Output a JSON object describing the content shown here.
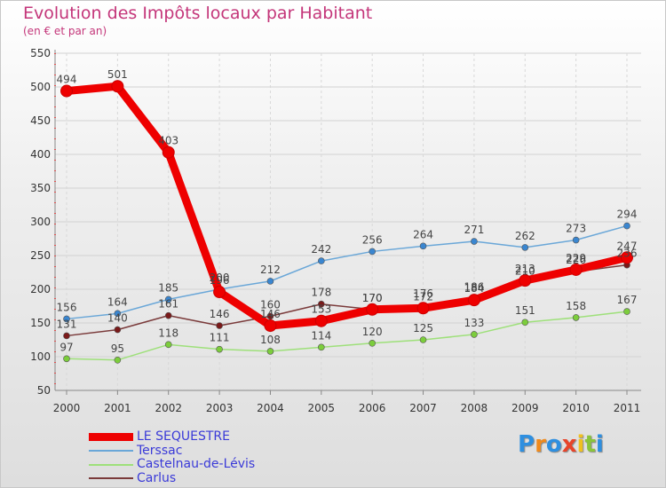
{
  "title": "Evolution des Impôts locaux par Habitant",
  "subtitle": "(en € et par an)",
  "logo": {
    "letters": [
      "P",
      "r",
      "o",
      "x",
      "i",
      "t",
      "i"
    ],
    "colors": [
      "#2e8fe0",
      "#f08a1c",
      "#2e8fe0",
      "#e8442a",
      "#f0c020",
      "#8ac43c",
      "#2e8fe0"
    ]
  },
  "chart_data": {
    "type": "line",
    "title": "Evolution des Impôts locaux par Habitant",
    "subtitle": "(en € et par an)",
    "xlabel": "",
    "ylabel": "",
    "x": [
      "2000",
      "2001",
      "2002",
      "2003",
      "2004",
      "2005",
      "2006",
      "2007",
      "2008",
      "2009",
      "2010",
      "2011"
    ],
    "ylim": [
      50,
      550
    ],
    "yticks": [
      50,
      100,
      150,
      200,
      250,
      300,
      350,
      400,
      450,
      500,
      550
    ],
    "legend_position": "bottom-left",
    "series": [
      {
        "name": "LE SEQUESTRE",
        "values": [
          494,
          501,
          403,
          196,
          146,
          153,
          170,
          172,
          184,
          213,
          229,
          247
        ],
        "labels": [
          "494",
          "501",
          "403",
          "196",
          "146",
          "153",
          "170",
          "172",
          "184",
          "213",
          "229",
          "247"
        ],
        "color": "#ee0000",
        "marker": "#ee0000"
      },
      {
        "name": "Terssac",
        "values": [
          156,
          164,
          185,
          200,
          212,
          242,
          256,
          264,
          271,
          262,
          273,
          294
        ],
        "labels": [
          "156",
          "164",
          "185",
          "200",
          "212",
          "242",
          "256",
          "264",
          "271",
          "262",
          "273",
          "294"
        ],
        "color": "#6aa7d8",
        "marker": "#3a86d0"
      },
      {
        "name": "Castelnau-de-Lévis",
        "values": [
          97,
          95,
          118,
          111,
          108,
          114,
          120,
          125,
          133,
          151,
          158,
          167
        ],
        "labels": [
          "97",
          "95",
          "118",
          "111",
          "108",
          "114",
          "120",
          "125",
          "133",
          "151",
          "158",
          "167"
        ],
        "color": "#9ee07a",
        "marker": "#7ccd3c"
      },
      {
        "name": "Carlus",
        "values": [
          131,
          140,
          161,
          146,
          160,
          178,
          170,
          176,
          186,
          210,
          226,
          236
        ],
        "labels": [
          "131",
          "140",
          "161",
          "146",
          "160",
          "178",
          "170",
          "176",
          "186",
          "210",
          "226",
          "236"
        ],
        "color": "#7a3a3a",
        "marker": "#7a1a1a"
      }
    ]
  }
}
